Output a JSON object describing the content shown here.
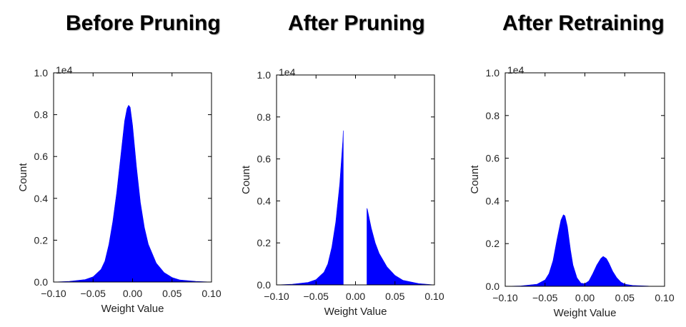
{
  "titles": [
    "Before Pruning",
    "After Pruning",
    "After Retraining"
  ],
  "chart_data": [
    {
      "type": "area",
      "title": "Before Pruning",
      "xlabel": "Weight Value",
      "ylabel": "Count",
      "exponent_label": "1e4",
      "xlim": [
        -0.1,
        0.1
      ],
      "ylim": [
        0,
        1.0
      ],
      "x_ticks": [
        -0.1,
        -0.05,
        0.0,
        0.05,
        0.1
      ],
      "x_tick_labels": [
        "−0.10",
        "−0.05",
        "0.00",
        "0.05",
        "0.10"
      ],
      "y_ticks": [
        0.0,
        0.2,
        0.4,
        0.6,
        0.8,
        1.0
      ],
      "y_tick_labels": [
        "0.0",
        "0.2",
        "0.4",
        "0.6",
        "0.8",
        "1.0"
      ],
      "color": "#0000ff",
      "series": [
        {
          "x": [
            -0.1,
            -0.08,
            -0.06,
            -0.05,
            -0.04,
            -0.035,
            -0.03,
            -0.025,
            -0.02,
            -0.015,
            -0.01,
            -0.007,
            -0.005,
            -0.003,
            0.0,
            0.005,
            0.01,
            0.015,
            0.02,
            0.03,
            0.04,
            0.05,
            0.06,
            0.08,
            0.1
          ],
          "y": [
            0.0,
            0.003,
            0.012,
            0.025,
            0.06,
            0.1,
            0.18,
            0.29,
            0.43,
            0.6,
            0.77,
            0.83,
            0.845,
            0.835,
            0.75,
            0.55,
            0.38,
            0.26,
            0.18,
            0.09,
            0.045,
            0.022,
            0.01,
            0.003,
            0.0
          ]
        }
      ]
    },
    {
      "type": "area",
      "title": "After Pruning",
      "xlabel": "Weight Value",
      "ylabel": "Count",
      "exponent_label": "1e4",
      "xlim": [
        -0.1,
        0.1
      ],
      "ylim": [
        0,
        1.0
      ],
      "x_ticks": [
        -0.1,
        -0.05,
        0.0,
        0.05,
        0.1
      ],
      "x_tick_labels": [
        "−0.10",
        "−0.05",
        "0.00",
        "0.05",
        "0.10"
      ],
      "y_ticks": [
        0.0,
        0.2,
        0.4,
        0.6,
        0.8,
        1.0
      ],
      "y_tick_labels": [
        "0.0",
        "0.2",
        "0.4",
        "0.6",
        "0.8",
        "1.0"
      ],
      "color": "#0000ff",
      "series": [
        {
          "x": [
            -0.1,
            -0.08,
            -0.06,
            -0.05,
            -0.04,
            -0.035,
            -0.03,
            -0.025,
            -0.02,
            -0.016,
            -0.0155,
            -0.0155
          ],
          "y": [
            0.0,
            0.003,
            0.012,
            0.025,
            0.06,
            0.1,
            0.18,
            0.3,
            0.48,
            0.69,
            0.735,
            0.0
          ]
        },
        {
          "x": [
            0.0145,
            0.0145,
            0.015,
            0.02,
            0.025,
            0.03,
            0.04,
            0.05,
            0.06,
            0.08,
            0.1
          ],
          "y": [
            0.0,
            0.365,
            0.36,
            0.27,
            0.2,
            0.15,
            0.085,
            0.045,
            0.022,
            0.006,
            0.0
          ]
        }
      ]
    },
    {
      "type": "area",
      "title": "After Retraining",
      "xlabel": "Weight Value",
      "ylabel": "Count",
      "exponent_label": "1e4",
      "xlim": [
        -0.1,
        0.1
      ],
      "ylim": [
        0,
        1.0
      ],
      "x_ticks": [
        -0.1,
        -0.05,
        0.0,
        0.05,
        0.1
      ],
      "x_tick_labels": [
        "−0.10",
        "−0.05",
        "0.00",
        "0.05",
        "0.10"
      ],
      "y_ticks": [
        0.0,
        0.2,
        0.4,
        0.6,
        0.8,
        1.0
      ],
      "y_tick_labels": [
        "0.0",
        "0.2",
        "0.4",
        "0.6",
        "0.8",
        "1.0"
      ],
      "color": "#0000ff",
      "series": [
        {
          "x": [
            -0.1,
            -0.08,
            -0.06,
            -0.05,
            -0.045,
            -0.04,
            -0.035,
            -0.03,
            -0.027,
            -0.025,
            -0.022,
            -0.018,
            -0.015,
            -0.01,
            -0.005,
            0.0,
            0.005,
            0.01,
            0.015,
            0.02,
            0.023,
            0.027,
            0.03,
            0.035,
            0.04,
            0.045,
            0.05,
            0.06,
            0.08,
            0.1
          ],
          "y": [
            0.0,
            0.002,
            0.01,
            0.03,
            0.06,
            0.12,
            0.22,
            0.31,
            0.335,
            0.33,
            0.28,
            0.17,
            0.1,
            0.04,
            0.015,
            0.012,
            0.025,
            0.06,
            0.1,
            0.13,
            0.14,
            0.13,
            0.11,
            0.07,
            0.04,
            0.02,
            0.01,
            0.004,
            0.001,
            0.0
          ]
        }
      ]
    }
  ]
}
